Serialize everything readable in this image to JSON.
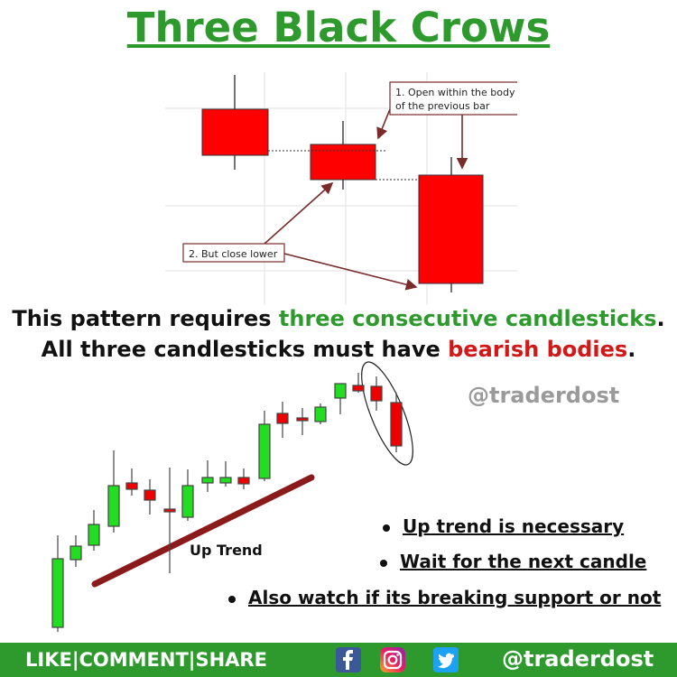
{
  "title": "Three Black Crows",
  "diagram": {
    "annotation1_line1": "1. Open within the body",
    "annotation1_line2": "of the previous bar",
    "annotation2": "2. But close lower",
    "candle_color": "#ff0000"
  },
  "headline": {
    "line1_prefix": "This pattern requires ",
    "line1_highlight": "three consecutive candlesticks",
    "line1_suffix": ".",
    "line2_prefix": "All three candlesticks must have ",
    "line2_highlight": "bearish bodies",
    "line2_suffix": "."
  },
  "watermark": "@traderdost",
  "chart": {
    "trend_label": "Up Trend",
    "up_color": "#22dd22",
    "down_color": "#ee0000",
    "trendline_color": "#8b1a1a"
  },
  "bullets": [
    "Up trend is necessary",
    "Wait for the next candle",
    "Also watch if its breaking support or not"
  ],
  "footer": {
    "actions": "LIKE|COMMENT|SHARE",
    "handle": "@traderdost",
    "social_icons": [
      "facebook-icon",
      "instagram-icon",
      "twitter-icon"
    ]
  }
}
